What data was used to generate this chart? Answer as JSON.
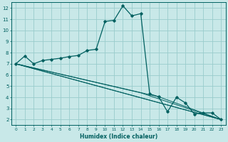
{
  "xlabel": "Humidex (Indice chaleur)",
  "bg_color": "#c8e8e8",
  "line_color": "#006060",
  "grid_color": "#99cccc",
  "xlim": [
    -0.5,
    23.5
  ],
  "ylim": [
    1.5,
    12.5
  ],
  "xticks": [
    0,
    1,
    2,
    3,
    4,
    5,
    6,
    7,
    8,
    9,
    10,
    11,
    12,
    13,
    14,
    15,
    16,
    17,
    18,
    19,
    20,
    21,
    22,
    23
  ],
  "yticks": [
    2,
    3,
    4,
    5,
    6,
    7,
    8,
    9,
    10,
    11,
    12
  ],
  "line1_x": [
    0,
    1,
    2,
    3,
    4,
    5,
    6,
    7,
    8,
    9,
    10,
    11,
    12,
    13,
    14,
    15,
    16,
    17,
    18,
    19,
    20,
    21,
    22,
    23
  ],
  "line1_y": [
    7.0,
    7.7,
    7.0,
    7.3,
    7.4,
    7.5,
    7.65,
    7.75,
    8.2,
    8.3,
    10.8,
    10.9,
    12.2,
    11.3,
    11.5,
    4.3,
    4.05,
    2.7,
    4.0,
    3.5,
    2.5,
    2.6,
    2.6,
    2.0
  ],
  "line2_x": [
    0,
    23
  ],
  "line2_y": [
    7.0,
    2.0
  ],
  "line3_x": [
    0,
    23
  ],
  "line3_y": [
    7.0,
    2.0
  ],
  "line4_x": [
    0,
    14,
    23
  ],
  "line4_y": [
    7.0,
    4.4,
    2.0
  ],
  "line5_x": [
    0,
    16,
    23
  ],
  "line5_y": [
    7.0,
    4.05,
    2.0
  ]
}
